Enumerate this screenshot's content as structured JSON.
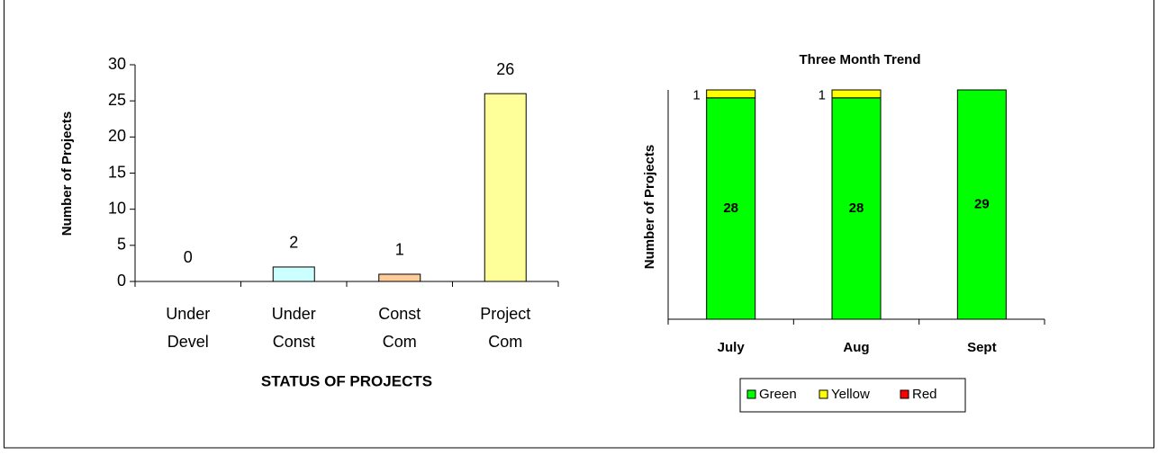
{
  "chart_data": [
    {
      "type": "bar",
      "categories": [
        "Under Devel",
        "Under Const",
        "Const Com",
        "Project Com"
      ],
      "values": [
        0,
        2,
        1,
        26
      ],
      "colors": [
        "#ccffcc",
        "#ccffff",
        "#ffcc99",
        "#ffff99"
      ],
      "x_label": "STATUS OF PROJECTS",
      "y_label": "Number of Projects",
      "ylim": [
        0,
        30
      ],
      "yticks": [
        0,
        5,
        10,
        15,
        20,
        25,
        30
      ],
      "grid": false,
      "data_labels": true
    },
    {
      "type": "stacked_bar",
      "title": "Three Month Trend",
      "categories": [
        "July",
        "Aug",
        "Sept"
      ],
      "y_label": "Number of Projects",
      "ylim": [
        0,
        29
      ],
      "legend": "bottom",
      "series": [
        {
          "name": "Green",
          "color": "#00ff00",
          "values": [
            28,
            28,
            29
          ]
        },
        {
          "name": "Yellow",
          "color": "#ffff00",
          "values": [
            1,
            1,
            0
          ]
        },
        {
          "name": "Red",
          "color": "#ff0000",
          "values": [
            0,
            0,
            0
          ]
        }
      ]
    }
  ]
}
